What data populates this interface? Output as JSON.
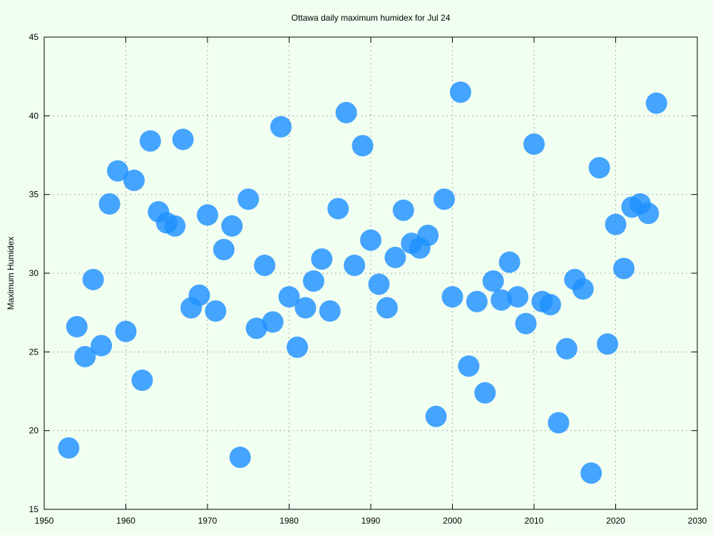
{
  "chart_data": {
    "type": "scatter",
    "title": "Ottawa daily maximum humidex for Jul 24",
    "xlabel": "",
    "ylabel": "Maximum Humidex",
    "xlim": [
      1950,
      2030
    ],
    "ylim": [
      15,
      45
    ],
    "xticks": [
      "1950",
      "1960",
      "1970",
      "1980",
      "1990",
      "2000",
      "2010",
      "2020",
      "2030"
    ],
    "yticks": [
      "15",
      "20",
      "25",
      "30",
      "35",
      "40",
      "45"
    ],
    "grid": true,
    "marker_color": "#1e90ff",
    "points": [
      {
        "x": 1953,
        "y": 18.9
      },
      {
        "x": 1954,
        "y": 26.6
      },
      {
        "x": 1955,
        "y": 24.7
      },
      {
        "x": 1956,
        "y": 29.6
      },
      {
        "x": 1957,
        "y": 25.4
      },
      {
        "x": 1958,
        "y": 34.4
      },
      {
        "x": 1959,
        "y": 36.5
      },
      {
        "x": 1960,
        "y": 26.3
      },
      {
        "x": 1961,
        "y": 35.9
      },
      {
        "x": 1962,
        "y": 23.2
      },
      {
        "x": 1963,
        "y": 38.4
      },
      {
        "x": 1964,
        "y": 33.9
      },
      {
        "x": 1965,
        "y": 33.2
      },
      {
        "x": 1966,
        "y": 33.0
      },
      {
        "x": 1967,
        "y": 38.5
      },
      {
        "x": 1968,
        "y": 27.8
      },
      {
        "x": 1969,
        "y": 28.6
      },
      {
        "x": 1970,
        "y": 33.7
      },
      {
        "x": 1971,
        "y": 27.6
      },
      {
        "x": 1972,
        "y": 31.5
      },
      {
        "x": 1973,
        "y": 33.0
      },
      {
        "x": 1974,
        "y": 18.3
      },
      {
        "x": 1975,
        "y": 34.7
      },
      {
        "x": 1976,
        "y": 26.5
      },
      {
        "x": 1977,
        "y": 30.5
      },
      {
        "x": 1978,
        "y": 26.9
      },
      {
        "x": 1979,
        "y": 39.3
      },
      {
        "x": 1980,
        "y": 28.5
      },
      {
        "x": 1981,
        "y": 25.3
      },
      {
        "x": 1982,
        "y": 27.8
      },
      {
        "x": 1983,
        "y": 29.5
      },
      {
        "x": 1984,
        "y": 30.9
      },
      {
        "x": 1985,
        "y": 27.6
      },
      {
        "x": 1986,
        "y": 34.1
      },
      {
        "x": 1987,
        "y": 40.2
      },
      {
        "x": 1988,
        "y": 30.5
      },
      {
        "x": 1989,
        "y": 38.1
      },
      {
        "x": 1990,
        "y": 32.1
      },
      {
        "x": 1991,
        "y": 29.3
      },
      {
        "x": 1992,
        "y": 27.8
      },
      {
        "x": 1993,
        "y": 31.0
      },
      {
        "x": 1994,
        "y": 34.0
      },
      {
        "x": 1995,
        "y": 31.9
      },
      {
        "x": 1996,
        "y": 31.6
      },
      {
        "x": 1997,
        "y": 32.4
      },
      {
        "x": 1998,
        "y": 20.9
      },
      {
        "x": 1999,
        "y": 34.7
      },
      {
        "x": 2000,
        "y": 28.5
      },
      {
        "x": 2001,
        "y": 41.5
      },
      {
        "x": 2002,
        "y": 24.1
      },
      {
        "x": 2003,
        "y": 28.2
      },
      {
        "x": 2004,
        "y": 22.4
      },
      {
        "x": 2005,
        "y": 29.5
      },
      {
        "x": 2006,
        "y": 28.3
      },
      {
        "x": 2007,
        "y": 30.7
      },
      {
        "x": 2008,
        "y": 28.5
      },
      {
        "x": 2009,
        "y": 26.8
      },
      {
        "x": 2010,
        "y": 38.2
      },
      {
        "x": 2011,
        "y": 28.2
      },
      {
        "x": 2012,
        "y": 28.0
      },
      {
        "x": 2013,
        "y": 20.5
      },
      {
        "x": 2014,
        "y": 25.2
      },
      {
        "x": 2015,
        "y": 29.6
      },
      {
        "x": 2016,
        "y": 29.0
      },
      {
        "x": 2017,
        "y": 17.3
      },
      {
        "x": 2018,
        "y": 36.7
      },
      {
        "x": 2019,
        "y": 25.5
      },
      {
        "x": 2020,
        "y": 33.1
      },
      {
        "x": 2021,
        "y": 30.3
      },
      {
        "x": 2022,
        "y": 34.2
      },
      {
        "x": 2023,
        "y": 34.4
      },
      {
        "x": 2024,
        "y": 33.8
      },
      {
        "x": 2025,
        "y": 40.8
      }
    ]
  }
}
